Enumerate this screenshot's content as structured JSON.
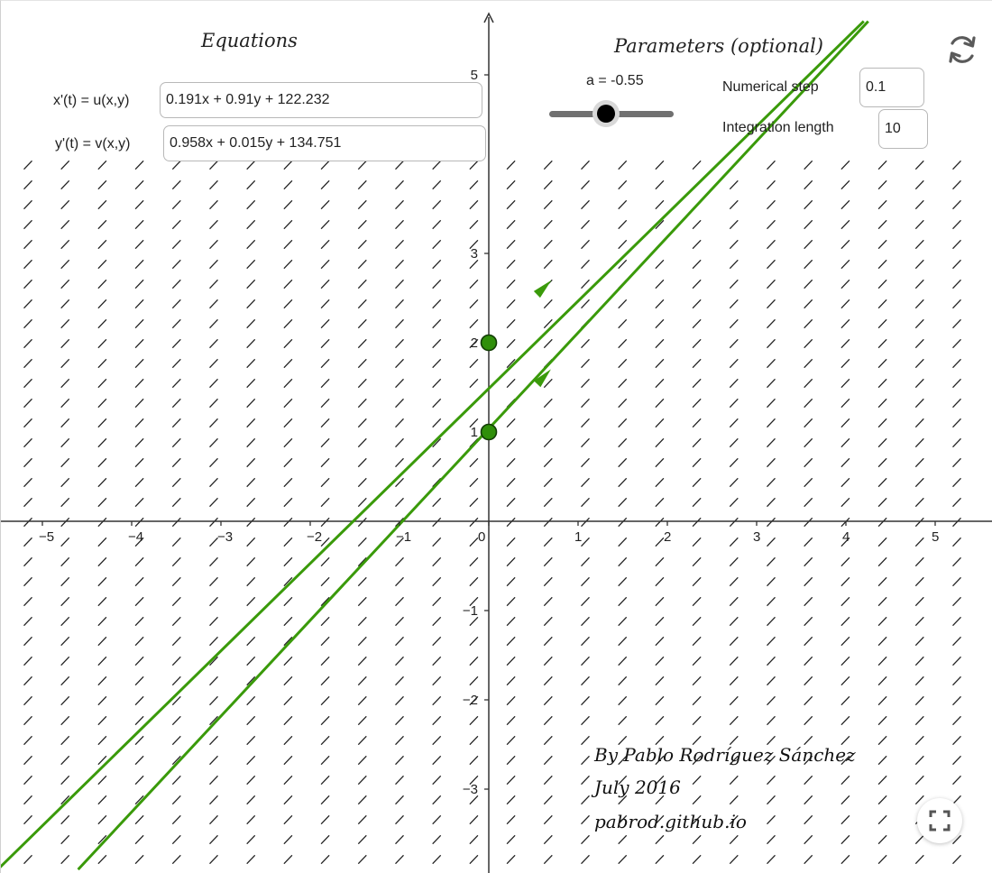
{
  "equations": {
    "title": "Equations",
    "x_label": "x'(t) = u(x,y)",
    "x_value": "0.191x + 0.91y + 122.232",
    "y_label": "y'(t) = v(x,y)",
    "y_value": "0.958x + 0.015y + 134.751"
  },
  "parameters": {
    "title": "Parameters (optional)",
    "slider_label": "a = -0.55",
    "a_value": -0.55,
    "step_label": "Numerical step",
    "step_value": "0.1",
    "length_label": "Integration length",
    "length_value": "10"
  },
  "credits": {
    "line1": "By Pablo Rodríguez Sánchez",
    "line2": "July 2016",
    "line3": "pabrod.github.io"
  },
  "icons": {
    "reset": "refresh-icon",
    "fullscreen": "fullscreen-icon"
  },
  "colors": {
    "trajectory": "#3a9a0a",
    "point_fill": "#2f8f0a",
    "axis": "#333333",
    "field": "#222222"
  },
  "chart_data": {
    "type": "vector-field",
    "xlim": [
      -5.5,
      5.6
    ],
    "ylim": [
      -3.9,
      5.6
    ],
    "x_ticks": [
      "-5",
      "-4",
      "-3",
      "-2",
      "-1",
      "0",
      "1",
      "2",
      "3",
      "4",
      "5"
    ],
    "y_ticks": [
      "-3",
      "-2",
      "-1",
      "1",
      "2",
      "3",
      "5"
    ],
    "slope_field_slope": 1.05,
    "initial_points": [
      {
        "x": 0,
        "y": 2
      },
      {
        "x": 0,
        "y": 1
      }
    ],
    "trajectories": [
      {
        "start": [
          -5.5,
          -3.9
        ],
        "end": [
          4.2,
          5.6
        ],
        "arrow_at": [
          0.6,
          2.6
        ]
      },
      {
        "start": [
          -4.6,
          -3.9
        ],
        "end": [
          4.25,
          5.6
        ],
        "arrow_at": [
          0.6,
          1.6
        ]
      }
    ]
  }
}
